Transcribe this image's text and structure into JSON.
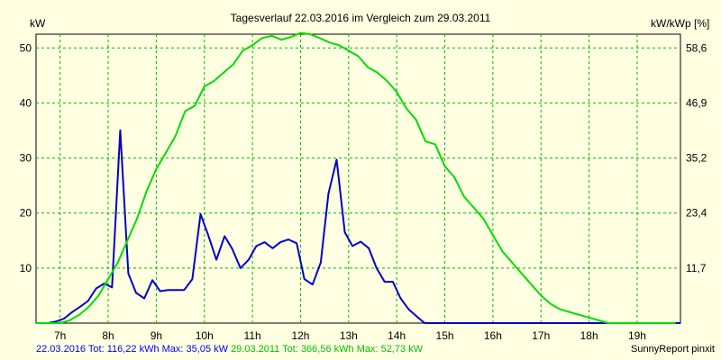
{
  "chart_data": {
    "type": "line",
    "title": "Tagesverlauf 22.03.2016 im Vergleich zum 29.03.2011",
    "ylabel_left": "kW",
    "ylabel_right": "kW/kWp [%]",
    "x_ticks": [
      "7h",
      "8h",
      "9h",
      "10h",
      "11h",
      "12h",
      "13h",
      "14h",
      "15h",
      "16h",
      "17h",
      "18h",
      "19h"
    ],
    "x_tick_values": [
      7,
      8,
      9,
      10,
      11,
      12,
      13,
      14,
      15,
      16,
      17,
      18,
      19
    ],
    "xlim": [
      6.5,
      19.9
    ],
    "y_ticks": [
      10,
      20,
      30,
      40,
      50
    ],
    "ylim": [
      0,
      52.5
    ],
    "y2_ticks": [
      "11,7",
      "23,4",
      "35,2",
      "46,9",
      "58,6"
    ],
    "grid": true,
    "series": [
      {
        "name": "22.03.2016",
        "color": "#0000cc",
        "x": [
          6.5,
          6.75,
          6.92,
          7.08,
          7.25,
          7.42,
          7.58,
          7.75,
          7.92,
          8.08,
          8.25,
          8.42,
          8.58,
          8.75,
          8.92,
          9.08,
          9.25,
          9.42,
          9.58,
          9.75,
          9.92,
          10.08,
          10.25,
          10.42,
          10.58,
          10.75,
          10.92,
          11.08,
          11.25,
          11.42,
          11.58,
          11.75,
          11.92,
          12.08,
          12.25,
          12.42,
          12.58,
          12.75,
          12.92,
          13.08,
          13.25,
          13.42,
          13.58,
          13.75,
          13.92,
          14.08,
          14.25,
          14.42,
          14.58,
          14.75,
          14.92,
          15.08,
          15.25,
          15.42,
          15.58,
          15.75,
          15.92,
          16.08,
          16.25,
          16.42,
          16.58,
          16.75,
          16.92,
          17.08,
          17.25,
          17.42,
          17.58,
          17.75,
          19.9
        ],
        "y": [
          0,
          0,
          0.3,
          0.8,
          2,
          3,
          4,
          6.3,
          7.2,
          6.5,
          35.05,
          9,
          5.5,
          4.5,
          7.8,
          5.8,
          6,
          6,
          6,
          8,
          19.8,
          16,
          11.5,
          15.8,
          13.5,
          10,
          11.5,
          14,
          14.7,
          13.6,
          14.7,
          15.2,
          14.5,
          8,
          7,
          11,
          23.5,
          29.7,
          16.5,
          14,
          14.8,
          13.6,
          10,
          7.5,
          7.5,
          4.5,
          2.5,
          1.2,
          0,
          0,
          0,
          0,
          0,
          0,
          0,
          0,
          0,
          0,
          0,
          0,
          0,
          0,
          0,
          0,
          0,
          0,
          0,
          0,
          0
        ]
      },
      {
        "name": "29.03.2011",
        "color": "#00dd00",
        "x": [
          6.5,
          6.8,
          7.0,
          7.2,
          7.4,
          7.6,
          7.8,
          8.0,
          8.2,
          8.4,
          8.6,
          8.8,
          9.0,
          9.2,
          9.4,
          9.6,
          9.8,
          10.0,
          10.2,
          10.4,
          10.6,
          10.8,
          11.0,
          11.2,
          11.4,
          11.6,
          11.8,
          12.0,
          12.2,
          12.4,
          12.6,
          12.8,
          13.0,
          13.2,
          13.4,
          13.6,
          13.8,
          14.0,
          14.2,
          14.4,
          14.6,
          14.8,
          15.0,
          15.2,
          15.4,
          15.6,
          15.8,
          16.0,
          16.2,
          16.4,
          16.6,
          16.8,
          17.0,
          17.2,
          17.4,
          17.6,
          17.8,
          18.0,
          18.2,
          18.4,
          18.6,
          18.8,
          19.0,
          19.2,
          19.4,
          19.6,
          19.8
        ],
        "y": [
          0,
          0,
          0,
          0.5,
          1.5,
          3,
          5,
          8,
          11,
          15,
          19,
          24,
          28,
          31,
          34,
          38.5,
          39.5,
          43,
          44,
          45.5,
          47,
          49.5,
          50.5,
          51.8,
          52.2,
          51.5,
          52,
          52.73,
          52.5,
          51.8,
          51,
          50.5,
          49.5,
          48.5,
          46.5,
          45.5,
          44,
          42,
          39,
          37,
          33,
          32.5,
          28.5,
          26.5,
          23,
          21,
          19,
          16,
          13,
          11,
          9,
          7,
          5,
          3.5,
          2.5,
          2,
          1.5,
          1,
          0.5,
          0,
          0,
          0,
          0,
          0,
          0,
          0,
          0
        ]
      }
    ]
  },
  "footer": {
    "series1_text": "22.03.2016 Tot: 116,22 kWh Max: 35,05 kW",
    "series2_text": "29.03.2011 Tot: 366,56 kWh Max: 52,73 kW",
    "credit": "SunnyReport pinxit"
  }
}
